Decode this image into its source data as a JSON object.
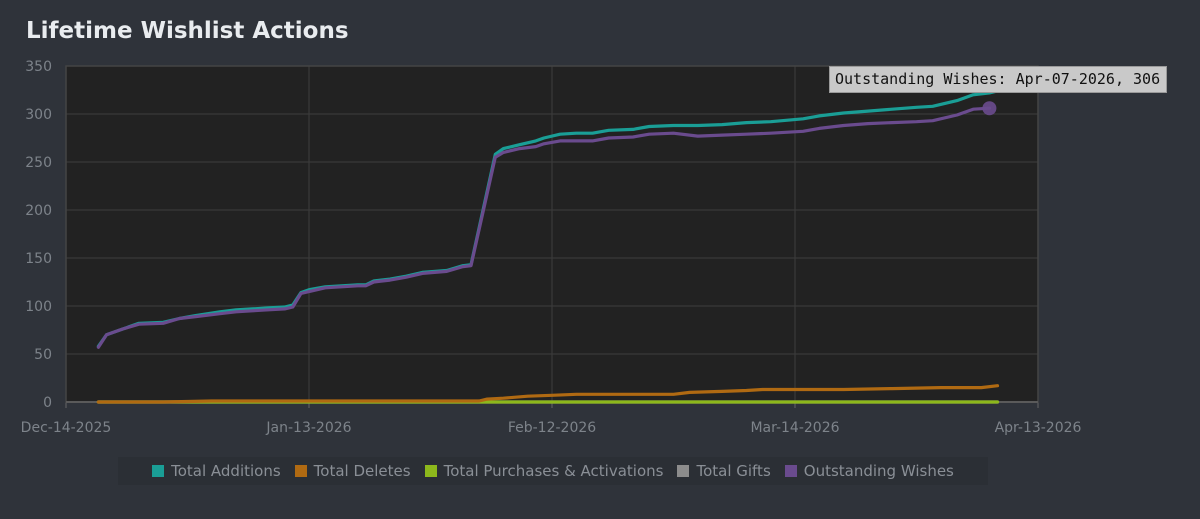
{
  "page": {
    "title": "Lifetime Wishlist Actions"
  },
  "tooltip": {
    "text": "Outstanding Wishes: Apr-07-2026, 306"
  },
  "chart_data": {
    "type": "line",
    "title": "Lifetime Wishlist Actions",
    "xlabel": "",
    "ylabel": "",
    "x_type": "date",
    "xlim": [
      "2025-12-14",
      "2026-04-13"
    ],
    "ylim": [
      0,
      350
    ],
    "x_ticks": [
      {
        "date": "2025-12-14",
        "label": "Dec-14-2025"
      },
      {
        "date": "2026-01-13",
        "label": "Jan-13-2026"
      },
      {
        "date": "2026-02-12",
        "label": "Feb-12-2026"
      },
      {
        "date": "2026-03-14",
        "label": "Mar-14-2026"
      },
      {
        "date": "2026-04-13",
        "label": "Apr-13-2026"
      }
    ],
    "y_ticks": [
      0,
      50,
      100,
      150,
      200,
      250,
      300,
      350
    ],
    "grid": true,
    "legend_position": "bottom",
    "highlight": {
      "series": "Outstanding Wishes",
      "date": "2026-04-07",
      "value": 306
    },
    "series": [
      {
        "name": "Total Additions",
        "color": "#1a9e96",
        "points": [
          [
            "2025-12-18",
            58
          ],
          [
            "2025-12-19",
            70
          ],
          [
            "2025-12-21",
            76
          ],
          [
            "2025-12-23",
            82
          ],
          [
            "2025-12-26",
            83
          ],
          [
            "2025-12-28",
            87
          ],
          [
            "2025-12-30",
            90
          ],
          [
            "2026-01-02",
            94
          ],
          [
            "2026-01-04",
            96
          ],
          [
            "2026-01-06",
            97
          ],
          [
            "2026-01-08",
            98
          ],
          [
            "2026-01-10",
            99
          ],
          [
            "2026-01-11",
            101
          ],
          [
            "2026-01-12",
            114
          ],
          [
            "2026-01-13",
            117
          ],
          [
            "2026-01-15",
            120
          ],
          [
            "2026-01-17",
            121
          ],
          [
            "2026-01-19",
            122
          ],
          [
            "2026-01-20",
            122
          ],
          [
            "2026-01-21",
            126
          ],
          [
            "2026-01-23",
            128
          ],
          [
            "2026-01-25",
            131
          ],
          [
            "2026-01-27",
            135
          ],
          [
            "2026-01-30",
            137
          ],
          [
            "2026-02-01",
            142
          ],
          [
            "2026-02-02",
            143
          ],
          [
            "2026-02-05",
            258
          ],
          [
            "2026-02-06",
            264
          ],
          [
            "2026-02-08",
            268
          ],
          [
            "2026-02-10",
            272
          ],
          [
            "2026-02-11",
            275
          ],
          [
            "2026-02-13",
            279
          ],
          [
            "2026-02-15",
            280
          ],
          [
            "2026-02-17",
            280
          ],
          [
            "2026-02-19",
            283
          ],
          [
            "2026-02-22",
            284
          ],
          [
            "2026-02-24",
            287
          ],
          [
            "2026-02-27",
            288
          ],
          [
            "2026-03-02",
            288
          ],
          [
            "2026-03-05",
            289
          ],
          [
            "2026-03-08",
            291
          ],
          [
            "2026-03-11",
            292
          ],
          [
            "2026-03-15",
            295
          ],
          [
            "2026-03-17",
            298
          ],
          [
            "2026-03-20",
            301
          ],
          [
            "2026-03-23",
            303
          ],
          [
            "2026-03-26",
            305
          ],
          [
            "2026-03-29",
            307
          ],
          [
            "2026-03-31",
            308
          ],
          [
            "2026-04-03",
            314
          ],
          [
            "2026-04-05",
            320
          ],
          [
            "2026-04-07",
            322
          ],
          [
            "2026-04-08",
            324
          ]
        ]
      },
      {
        "name": "Total Deletes",
        "color": "#b06a12",
        "points": [
          [
            "2025-12-18",
            0
          ],
          [
            "2025-12-26",
            0
          ],
          [
            "2026-01-01",
            1
          ],
          [
            "2026-01-20",
            1
          ],
          [
            "2026-02-03",
            1
          ],
          [
            "2026-02-04",
            3
          ],
          [
            "2026-02-06",
            4
          ],
          [
            "2026-02-09",
            6
          ],
          [
            "2026-02-12",
            7
          ],
          [
            "2026-02-15",
            8
          ],
          [
            "2026-02-20",
            8
          ],
          [
            "2026-02-25",
            8
          ],
          [
            "2026-02-27",
            8
          ],
          [
            "2026-03-01",
            10
          ],
          [
            "2026-03-05",
            11
          ],
          [
            "2026-03-08",
            12
          ],
          [
            "2026-03-10",
            13
          ],
          [
            "2026-03-15",
            13
          ],
          [
            "2026-03-20",
            13
          ],
          [
            "2026-03-26",
            14
          ],
          [
            "2026-04-01",
            15
          ],
          [
            "2026-04-06",
            15
          ],
          [
            "2026-04-08",
            17
          ]
        ]
      },
      {
        "name": "Total Purchases & Activations",
        "color": "#8db81c",
        "points": [
          [
            "2025-12-18",
            0
          ],
          [
            "2026-04-08",
            0
          ]
        ]
      },
      {
        "name": "Total Gifts",
        "color": "#8c8c8c",
        "points": [
          [
            "2025-12-18",
            0
          ],
          [
            "2026-04-08",
            0
          ]
        ]
      },
      {
        "name": "Outstanding Wishes",
        "color": "#6a4b8e",
        "points": [
          [
            "2025-12-18",
            57
          ],
          [
            "2025-12-19",
            70
          ],
          [
            "2025-12-21",
            76
          ],
          [
            "2025-12-23",
            81
          ],
          [
            "2025-12-26",
            82
          ],
          [
            "2025-12-28",
            87
          ],
          [
            "2025-12-30",
            89
          ],
          [
            "2026-01-02",
            92
          ],
          [
            "2026-01-04",
            94
          ],
          [
            "2026-01-06",
            95
          ],
          [
            "2026-01-08",
            96
          ],
          [
            "2026-01-10",
            97
          ],
          [
            "2026-01-11",
            99
          ],
          [
            "2026-01-12",
            113
          ],
          [
            "2026-01-13",
            115
          ],
          [
            "2026-01-15",
            119
          ],
          [
            "2026-01-17",
            120
          ],
          [
            "2026-01-19",
            121
          ],
          [
            "2026-01-20",
            121
          ],
          [
            "2026-01-21",
            125
          ],
          [
            "2026-01-23",
            127
          ],
          [
            "2026-01-25",
            130
          ],
          [
            "2026-01-27",
            134
          ],
          [
            "2026-01-30",
            136
          ],
          [
            "2026-02-01",
            141
          ],
          [
            "2026-02-02",
            142
          ],
          [
            "2026-02-05",
            255
          ],
          [
            "2026-02-06",
            260
          ],
          [
            "2026-02-08",
            264
          ],
          [
            "2026-02-10",
            266
          ],
          [
            "2026-02-11",
            269
          ],
          [
            "2026-02-13",
            272
          ],
          [
            "2026-02-15",
            272
          ],
          [
            "2026-02-17",
            272
          ],
          [
            "2026-02-19",
            275
          ],
          [
            "2026-02-22",
            276
          ],
          [
            "2026-02-24",
            279
          ],
          [
            "2026-02-27",
            280
          ],
          [
            "2026-03-02",
            277
          ],
          [
            "2026-03-05",
            278
          ],
          [
            "2026-03-08",
            279
          ],
          [
            "2026-03-11",
            280
          ],
          [
            "2026-03-15",
            282
          ],
          [
            "2026-03-17",
            285
          ],
          [
            "2026-03-20",
            288
          ],
          [
            "2026-03-23",
            290
          ],
          [
            "2026-03-26",
            291
          ],
          [
            "2026-03-29",
            292
          ],
          [
            "2026-03-31",
            293
          ],
          [
            "2026-04-03",
            299
          ],
          [
            "2026-04-05",
            305
          ],
          [
            "2026-04-07",
            306
          ]
        ]
      }
    ]
  }
}
